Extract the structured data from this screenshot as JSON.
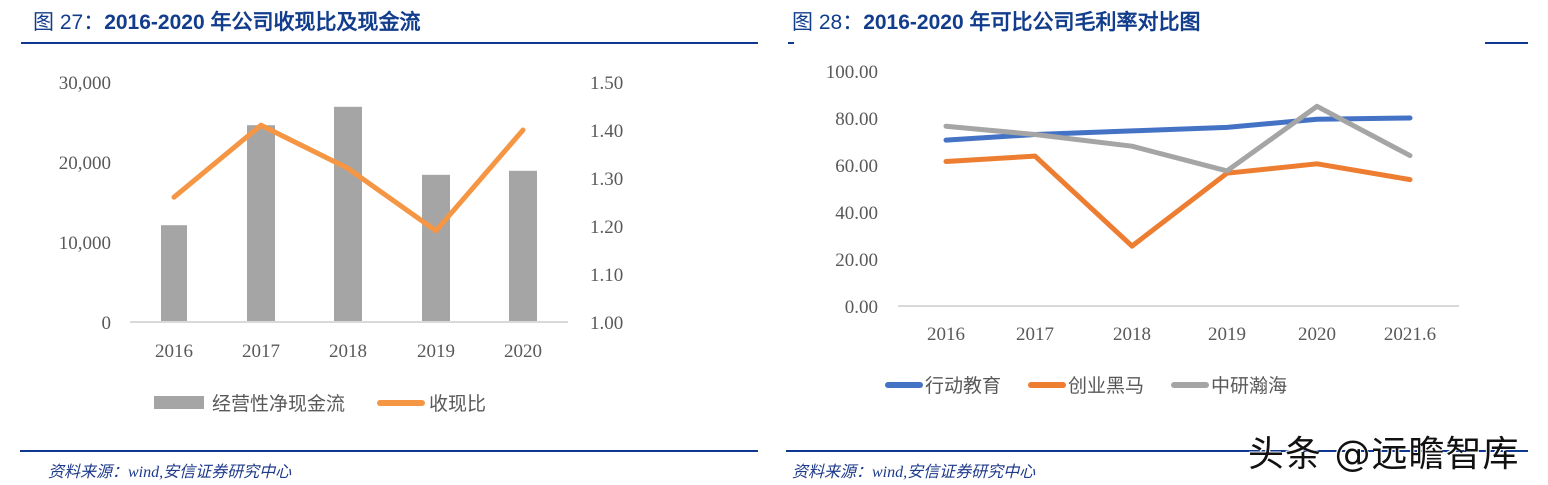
{
  "figure27": {
    "fig_label": "图 27：",
    "title": "2016-2020 年公司收现比及现金流",
    "source": "资料来源：wind,安信证券研究中心",
    "left_axis_ticks": [
      "30,000",
      "20,000",
      "10,000",
      "0"
    ],
    "right_axis_ticks": [
      "1.50",
      "1.40",
      "1.30",
      "1.20",
      "1.10",
      "1.00"
    ],
    "x_ticks": [
      "2016",
      "2017",
      "2018",
      "2019",
      "2020"
    ],
    "legend": [
      {
        "label": "经营性净现金流",
        "color": "#a5a5a5",
        "shape": "box"
      },
      {
        "label": "收现比",
        "color": "#f59644",
        "shape": "line"
      }
    ]
  },
  "figure28": {
    "fig_label": "图 28：",
    "title": "2016-2020 年可比公司毛利率对比图",
    "source": "资料来源：wind,安信证券研究中心",
    "y_axis_ticks": [
      "100.00",
      "80.00",
      "60.00",
      "40.00",
      "20.00",
      "0.00"
    ],
    "x_ticks": [
      "2016",
      "2017",
      "2018",
      "2019",
      "2020",
      "2021.6"
    ],
    "legend": [
      {
        "label": "行动教育",
        "color": "#4472c4"
      },
      {
        "label": "创业黑马",
        "color": "#ed7d31"
      },
      {
        "label": "中研瀚海",
        "color": "#a5a5a5"
      }
    ]
  },
  "watermark": "头条 @远瞻智库",
  "chart_data": [
    {
      "type": "bar",
      "title": "2016-2020 年公司收现比及现金流",
      "categories": [
        "2016",
        "2017",
        "2018",
        "2019",
        "2020"
      ],
      "series": [
        {
          "name": "经营性净现金流",
          "type": "bar",
          "axis": "left",
          "color": "#a5a5a5",
          "values": [
            12100,
            24600,
            26900,
            18400,
            18900
          ]
        },
        {
          "name": "收现比",
          "type": "line",
          "axis": "right",
          "color": "#f59644",
          "values": [
            1.26,
            1.41,
            1.32,
            1.19,
            1.4
          ]
        }
      ],
      "xlabel": "",
      "ylabel": "",
      "ylim": [
        0,
        30000
      ],
      "y2lim": [
        1.0,
        1.5
      ],
      "grid": false,
      "legend_position": "bottom"
    },
    {
      "type": "line",
      "title": "2016-2020 年可比公司毛利率对比图",
      "categories": [
        "2016",
        "2017",
        "2018",
        "2019",
        "2020",
        "2021.6"
      ],
      "series": [
        {
          "name": "行动教育",
          "color": "#4472c4",
          "values": [
            70.6,
            73.0,
            74.5,
            76.0,
            79.5,
            80.0
          ]
        },
        {
          "name": "创业黑马",
          "color": "#ed7d31",
          "values": [
            61.5,
            63.8,
            25.5,
            56.5,
            60.5,
            53.8
          ]
        },
        {
          "name": "中研瀚海",
          "color": "#a5a5a5",
          "values": [
            76.5,
            73.0,
            68.0,
            57.5,
            85.0,
            64.0
          ]
        }
      ],
      "xlabel": "",
      "ylabel": "",
      "ylim": [
        0,
        100
      ],
      "grid": false,
      "legend_position": "bottom"
    }
  ]
}
